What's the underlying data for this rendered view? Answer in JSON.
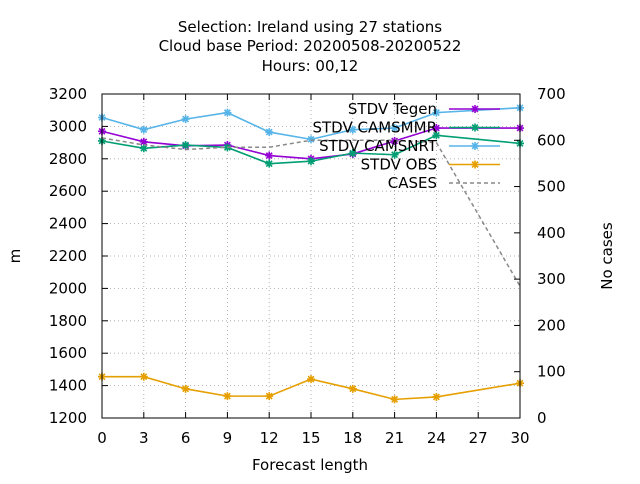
{
  "chart_data": {
    "type": "line",
    "title_lines": [
      "Selection: Ireland using    27 stations",
      "Cloud base   Period: 20200508-20200522",
      "Hours:  00,12"
    ],
    "xlabel": "Forecast length",
    "ylabel": "m",
    "y2label": "No cases",
    "x": [
      0,
      3,
      6,
      9,
      12,
      15,
      18,
      21,
      24,
      27,
      30
    ],
    "xlim": [
      0,
      30
    ],
    "ylim": [
      1200,
      3200
    ],
    "y2lim": [
      0,
      700
    ],
    "x_ticks": [
      0,
      3,
      6,
      9,
      12,
      15,
      18,
      21,
      24,
      27,
      30
    ],
    "y_ticks": [
      1200,
      1400,
      1600,
      1800,
      2000,
      2200,
      2400,
      2600,
      2800,
      3000,
      3200
    ],
    "y2_ticks": [
      0,
      100,
      200,
      300,
      400,
      500,
      600,
      700
    ],
    "grid": true,
    "legend_position": "top-right",
    "series": [
      {
        "name": "STDV Tegen",
        "axis": "y1",
        "color": "#9400d3",
        "marker": "star",
        "dash": false,
        "points": [
          [
            0,
            2970
          ],
          [
            3,
            2905
          ],
          [
            6,
            2880
          ],
          [
            9,
            2885
          ],
          [
            12,
            2820
          ],
          [
            15,
            2800
          ],
          [
            18,
            2830
          ],
          [
            21,
            2910
          ],
          [
            24,
            2990
          ],
          [
            30,
            2990
          ]
        ]
      },
      {
        "name": "STDV CAMSMMR",
        "axis": "y1",
        "color": "#009e73",
        "marker": "star",
        "dash": false,
        "points": [
          [
            0,
            2910
          ],
          [
            3,
            2865
          ],
          [
            6,
            2885
          ],
          [
            9,
            2870
          ],
          [
            12,
            2770
          ],
          [
            15,
            2785
          ],
          [
            18,
            2835
          ],
          [
            21,
            2825
          ],
          [
            24,
            2945
          ],
          [
            30,
            2895
          ]
        ]
      },
      {
        "name": "STDV CAMSNRT",
        "axis": "y1",
        "color": "#56b4e9",
        "marker": "star",
        "dash": false,
        "points": [
          [
            0,
            3055
          ],
          [
            3,
            2980
          ],
          [
            6,
            3045
          ],
          [
            9,
            3085
          ],
          [
            12,
            2965
          ],
          [
            15,
            2920
          ],
          [
            18,
            2980
          ],
          [
            21,
            2990
          ],
          [
            24,
            3085
          ],
          [
            30,
            3115
          ]
        ]
      },
      {
        "name": "STDV OBS",
        "axis": "y1",
        "color": "#e69f00",
        "marker": "star",
        "dash": false,
        "points": [
          [
            0,
            1455
          ],
          [
            3,
            1455
          ],
          [
            6,
            1380
          ],
          [
            9,
            1335
          ],
          [
            12,
            1335
          ],
          [
            15,
            1440
          ],
          [
            18,
            1380
          ],
          [
            21,
            1315
          ],
          [
            24,
            1330
          ],
          [
            30,
            1415
          ]
        ]
      },
      {
        "name": "CASES",
        "axis": "y2",
        "color": "#888888",
        "marker": "none",
        "dash": true,
        "points": [
          [
            0,
            605
          ],
          [
            3,
            590
          ],
          [
            6,
            580
          ],
          [
            9,
            585
          ],
          [
            12,
            585
          ],
          [
            15,
            600
          ],
          [
            18,
            600
          ],
          [
            21,
            600
          ],
          [
            24,
            595
          ],
          [
            30,
            285
          ]
        ]
      }
    ]
  }
}
